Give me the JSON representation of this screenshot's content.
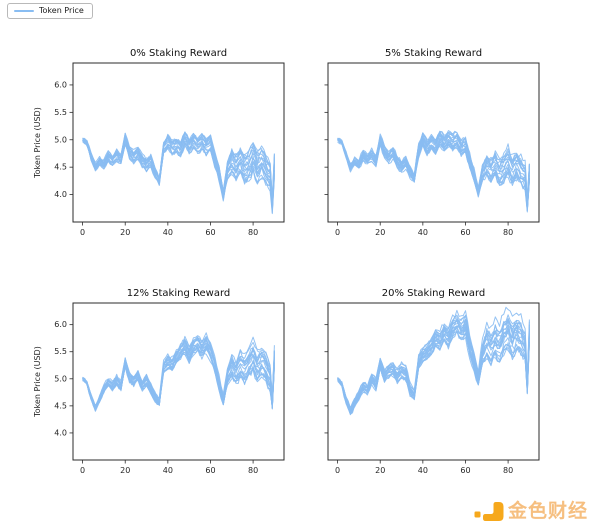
{
  "legend": {
    "label": "Token Price"
  },
  "figure": {
    "background": "#ffffff",
    "line_color": "#89BDF2",
    "axis_color": "#2b2b2b",
    "text_color": "#262626"
  },
  "watermark": {
    "text": "金色财经",
    "logo_color": "#F6A81C",
    "text_color": "#F6BF80"
  },
  "chart_data": [
    {
      "type": "line",
      "title": "0% Staking Reward",
      "ylabel": "Token Price (USD)",
      "xlabel": "",
      "legend": "Token Price",
      "xticks": [
        0,
        20,
        40,
        60,
        80
      ],
      "yticks": [
        "4.0",
        "4.5",
        "5.0",
        "5.5",
        "6.0"
      ],
      "xlim": [
        -4.5,
        94.5
      ],
      "ylim": [
        3.5,
        6.4
      ],
      "grid": false,
      "ytick_labels_visible": true,
      "n_paths": 20,
      "x": [
        0,
        2,
        4,
        6,
        8,
        10,
        12,
        14,
        16,
        18,
        20,
        22,
        24,
        26,
        28,
        30,
        32,
        34,
        36,
        38,
        40,
        42,
        44,
        46,
        48,
        50,
        52,
        54,
        56,
        58,
        60,
        62,
        64,
        66,
        68,
        70,
        72,
        74,
        76,
        78,
        80,
        82,
        84,
        86,
        88,
        89,
        90
      ],
      "median": [
        5.0,
        4.95,
        4.7,
        4.5,
        4.62,
        4.55,
        4.7,
        4.62,
        4.72,
        4.65,
        5.02,
        4.78,
        4.7,
        4.76,
        4.62,
        4.55,
        4.62,
        4.4,
        4.25,
        4.85,
        4.98,
        4.88,
        4.92,
        4.85,
        5.05,
        4.9,
        5.0,
        4.92,
        4.98,
        4.88,
        4.95,
        4.65,
        4.4,
        3.98,
        4.45,
        4.6,
        4.5,
        4.62,
        4.45,
        4.52,
        4.68,
        4.5,
        4.6,
        4.45,
        4.35,
        3.78,
        4.55
      ],
      "spread": [
        0.02,
        0.03,
        0.04,
        0.05,
        0.05,
        0.06,
        0.07,
        0.07,
        0.08,
        0.08,
        0.08,
        0.09,
        0.09,
        0.09,
        0.1,
        0.1,
        0.1,
        0.08,
        0.06,
        0.1,
        0.12,
        0.13,
        0.13,
        0.14,
        0.14,
        0.14,
        0.14,
        0.15,
        0.15,
        0.15,
        0.15,
        0.14,
        0.12,
        0.08,
        0.15,
        0.22,
        0.24,
        0.25,
        0.26,
        0.27,
        0.28,
        0.28,
        0.28,
        0.28,
        0.25,
        0.12,
        0.2
      ]
    },
    {
      "type": "line",
      "title": "5% Staking Reward",
      "ylabel": "",
      "xlabel": "",
      "legend": "Token Price",
      "xticks": [
        0,
        20,
        40,
        60,
        80
      ],
      "yticks": [
        "4.0",
        "4.5",
        "5.0",
        "5.5",
        "6.0"
      ],
      "xlim": [
        -4.5,
        94.5
      ],
      "ylim": [
        3.5,
        6.4
      ],
      "grid": false,
      "ytick_labels_visible": false,
      "n_paths": 20,
      "x": [
        0,
        2,
        4,
        6,
        8,
        10,
        12,
        14,
        16,
        18,
        20,
        22,
        24,
        26,
        28,
        30,
        32,
        34,
        36,
        38,
        40,
        42,
        44,
        46,
        48,
        50,
        52,
        54,
        56,
        58,
        60,
        62,
        64,
        66,
        68,
        70,
        72,
        74,
        76,
        78,
        80,
        82,
        84,
        86,
        88,
        89,
        90
      ],
      "median": [
        5.0,
        4.95,
        4.72,
        4.5,
        4.6,
        4.55,
        4.72,
        4.65,
        4.72,
        4.62,
        5.0,
        4.8,
        4.68,
        4.78,
        4.6,
        4.52,
        4.6,
        4.42,
        4.3,
        4.8,
        5.0,
        4.85,
        4.95,
        4.88,
        5.05,
        4.92,
        5.02,
        4.95,
        5.0,
        4.85,
        4.9,
        4.6,
        4.35,
        4.05,
        4.4,
        4.55,
        4.45,
        4.55,
        4.4,
        4.48,
        4.6,
        4.45,
        4.55,
        4.42,
        4.35,
        3.8,
        4.4
      ],
      "spread": [
        0.02,
        0.03,
        0.04,
        0.05,
        0.05,
        0.06,
        0.07,
        0.07,
        0.08,
        0.08,
        0.08,
        0.09,
        0.09,
        0.09,
        0.1,
        0.1,
        0.1,
        0.08,
        0.06,
        0.1,
        0.12,
        0.13,
        0.13,
        0.14,
        0.14,
        0.14,
        0.14,
        0.15,
        0.15,
        0.15,
        0.15,
        0.14,
        0.12,
        0.08,
        0.15,
        0.2,
        0.22,
        0.24,
        0.25,
        0.26,
        0.27,
        0.27,
        0.27,
        0.27,
        0.24,
        0.12,
        0.18
      ]
    },
    {
      "type": "line",
      "title": "12% Staking Reward",
      "ylabel": "Token Price (USD)",
      "xlabel": "",
      "legend": "Token Price",
      "xticks": [
        0,
        20,
        40,
        60,
        80
      ],
      "yticks": [
        "4.0",
        "4.5",
        "5.0",
        "5.5",
        "6.0"
      ],
      "xlim": [
        -4.5,
        94.5
      ],
      "ylim": [
        3.5,
        6.4
      ],
      "grid": false,
      "ytick_labels_visible": true,
      "n_paths": 20,
      "x": [
        0,
        2,
        4,
        6,
        8,
        10,
        12,
        14,
        16,
        18,
        20,
        22,
        24,
        26,
        28,
        30,
        32,
        34,
        36,
        38,
        40,
        42,
        44,
        46,
        48,
        50,
        52,
        54,
        56,
        58,
        60,
        62,
        64,
        66,
        68,
        70,
        72,
        74,
        76,
        78,
        80,
        82,
        84,
        86,
        88,
        89,
        90
      ],
      "median": [
        5.0,
        4.92,
        4.65,
        4.45,
        4.62,
        4.8,
        4.92,
        4.85,
        4.95,
        4.85,
        5.28,
        5.0,
        4.95,
        5.05,
        4.85,
        4.95,
        4.8,
        4.65,
        4.55,
        5.2,
        5.3,
        5.25,
        5.4,
        5.5,
        5.6,
        5.45,
        5.6,
        5.65,
        5.55,
        5.65,
        5.5,
        5.25,
        4.9,
        4.6,
        5.05,
        5.2,
        5.1,
        5.25,
        5.15,
        5.3,
        5.4,
        5.2,
        5.3,
        5.2,
        5.0,
        4.55,
        5.4
      ],
      "spread": [
        0.02,
        0.03,
        0.04,
        0.05,
        0.05,
        0.06,
        0.06,
        0.07,
        0.07,
        0.08,
        0.08,
        0.08,
        0.09,
        0.09,
        0.09,
        0.1,
        0.1,
        0.08,
        0.06,
        0.1,
        0.12,
        0.12,
        0.13,
        0.13,
        0.14,
        0.14,
        0.14,
        0.15,
        0.15,
        0.15,
        0.15,
        0.14,
        0.12,
        0.08,
        0.15,
        0.2,
        0.22,
        0.24,
        0.25,
        0.26,
        0.28,
        0.28,
        0.28,
        0.28,
        0.25,
        0.12,
        0.18
      ]
    },
    {
      "type": "line",
      "title": "20% Staking Reward",
      "ylabel": "",
      "xlabel": "",
      "legend": "Token Price",
      "xticks": [
        0,
        20,
        40,
        60,
        80
      ],
      "yticks": [
        "4.0",
        "4.5",
        "5.0",
        "5.5",
        "6.0"
      ],
      "xlim": [
        -4.5,
        94.5
      ],
      "ylim": [
        3.5,
        6.4
      ],
      "grid": false,
      "ytick_labels_visible": false,
      "n_paths": 20,
      "x": [
        0,
        2,
        4,
        6,
        8,
        10,
        12,
        14,
        16,
        18,
        20,
        22,
        24,
        26,
        28,
        30,
        32,
        34,
        36,
        38,
        40,
        42,
        44,
        46,
        48,
        50,
        52,
        54,
        56,
        58,
        60,
        62,
        64,
        66,
        68,
        70,
        72,
        74,
        76,
        78,
        80,
        82,
        84,
        86,
        88,
        89,
        90
      ],
      "median": [
        5.0,
        4.9,
        4.6,
        4.4,
        4.55,
        4.7,
        4.85,
        4.8,
        5.0,
        4.9,
        5.3,
        5.05,
        5.15,
        5.2,
        5.05,
        5.15,
        5.1,
        4.8,
        4.7,
        5.3,
        5.45,
        5.5,
        5.6,
        5.75,
        5.7,
        5.85,
        5.75,
        5.95,
        6.0,
        5.9,
        6.0,
        5.6,
        5.3,
        5.0,
        5.45,
        5.65,
        5.55,
        5.7,
        5.6,
        5.8,
        5.9,
        5.7,
        5.85,
        5.75,
        5.6,
        4.85,
        5.85
      ],
      "spread": [
        0.02,
        0.03,
        0.05,
        0.06,
        0.06,
        0.07,
        0.07,
        0.08,
        0.08,
        0.09,
        0.09,
        0.1,
        0.1,
        0.11,
        0.11,
        0.12,
        0.12,
        0.1,
        0.08,
        0.12,
        0.14,
        0.15,
        0.16,
        0.17,
        0.18,
        0.18,
        0.19,
        0.19,
        0.2,
        0.2,
        0.2,
        0.18,
        0.16,
        0.12,
        0.2,
        0.28,
        0.3,
        0.32,
        0.33,
        0.34,
        0.35,
        0.35,
        0.35,
        0.34,
        0.3,
        0.14,
        0.22
      ]
    }
  ]
}
